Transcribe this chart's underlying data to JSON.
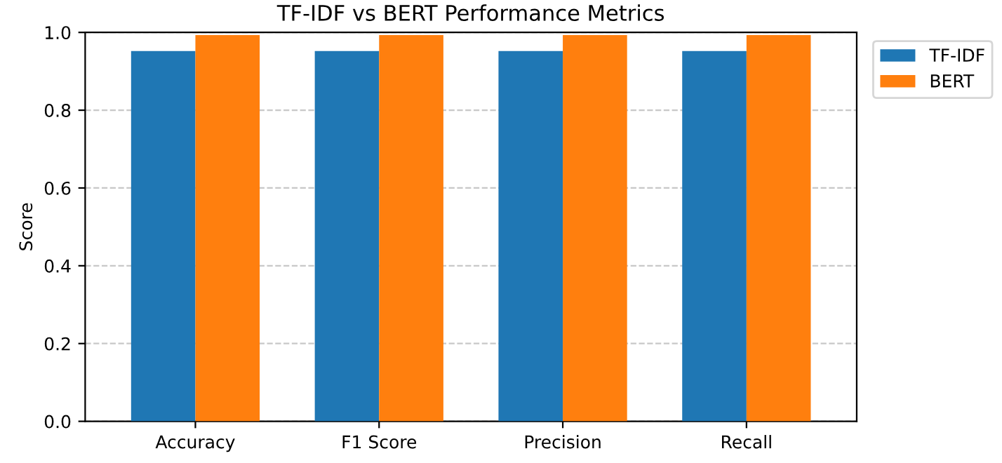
{
  "chart_data": {
    "type": "bar",
    "title": "TF-IDF vs BERT Performance Metrics",
    "ylabel": "Score",
    "categories": [
      "Accuracy",
      "F1 Score",
      "Precision",
      "Recall"
    ],
    "series": [
      {
        "name": "TF-IDF",
        "color": "#1f77b4",
        "values": [
          0.952,
          0.952,
          0.952,
          0.952
        ]
      },
      {
        "name": "BERT",
        "color": "#ff7f0e",
        "values": [
          0.993,
          0.993,
          0.993,
          0.993
        ]
      }
    ],
    "ylim": [
      0,
      1.0
    ],
    "yticks": [
      {
        "value": 0,
        "label": "0.0"
      },
      0.2,
      0.4,
      0.6,
      0.8,
      {
        "value": 1,
        "label": "1.0"
      }
    ],
    "grid": "y",
    "legend": "top right"
  }
}
